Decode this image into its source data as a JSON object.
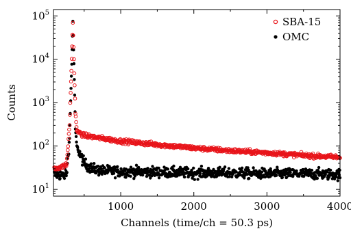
{
  "chart_data": {
    "type": "scatter",
    "xlabel": "Channels (time/ch = 50.3 ps)",
    "ylabel": "Counts",
    "y_scale": "log",
    "xlim": [
      80,
      4000
    ],
    "ylim": [
      7,
      140000
    ],
    "x_ticks": [
      1000,
      2000,
      3000,
      4000
    ],
    "x_tick_labels": [
      "1000",
      "2000",
      "3000",
      "4000"
    ],
    "y_ticks": [
      10,
      100,
      1000,
      10000,
      100000
    ],
    "y_tick_labels": [
      {
        "base": "10",
        "exp": "1"
      },
      {
        "base": "10",
        "exp": "2"
      },
      {
        "base": "10",
        "exp": "3"
      },
      {
        "base": "10",
        "exp": "4"
      },
      {
        "base": "10",
        "exp": "5"
      }
    ],
    "grid": false,
    "legend_position": "top-right",
    "series": [
      {
        "name": "SBA-15",
        "color": "#e8141a",
        "marker": "open-circle",
        "points": [
          [
            90,
            30
          ],
          [
            150,
            32
          ],
          [
            200,
            33
          ],
          [
            260,
            38
          ],
          [
            300,
            300
          ],
          [
            330,
            10000
          ],
          [
            345,
            70000
          ],
          [
            360,
            10000
          ],
          [
            380,
            600
          ],
          [
            400,
            220
          ],
          [
            500,
            175
          ],
          [
            750,
            150
          ],
          [
            1000,
            130
          ],
          [
            1500,
            108
          ],
          [
            2000,
            90
          ],
          [
            2500,
            78
          ],
          [
            3000,
            70
          ],
          [
            3500,
            61
          ],
          [
            4000,
            55
          ]
        ]
      },
      {
        "name": "OMC",
        "color": "#000000",
        "marker": "filled-circle",
        "points": [
          [
            90,
            22
          ],
          [
            150,
            22
          ],
          [
            200,
            21
          ],
          [
            260,
            23
          ],
          [
            300,
            150
          ],
          [
            330,
            8000
          ],
          [
            345,
            72000
          ],
          [
            360,
            8000
          ],
          [
            380,
            250
          ],
          [
            400,
            100
          ],
          [
            450,
            60
          ],
          [
            500,
            40
          ],
          [
            600,
            30
          ],
          [
            750,
            27
          ],
          [
            1000,
            26
          ],
          [
            1500,
            25
          ],
          [
            2000,
            24
          ],
          [
            2500,
            24
          ],
          [
            3000,
            23
          ],
          [
            3500,
            23
          ],
          [
            4000,
            22
          ]
        ]
      }
    ]
  }
}
